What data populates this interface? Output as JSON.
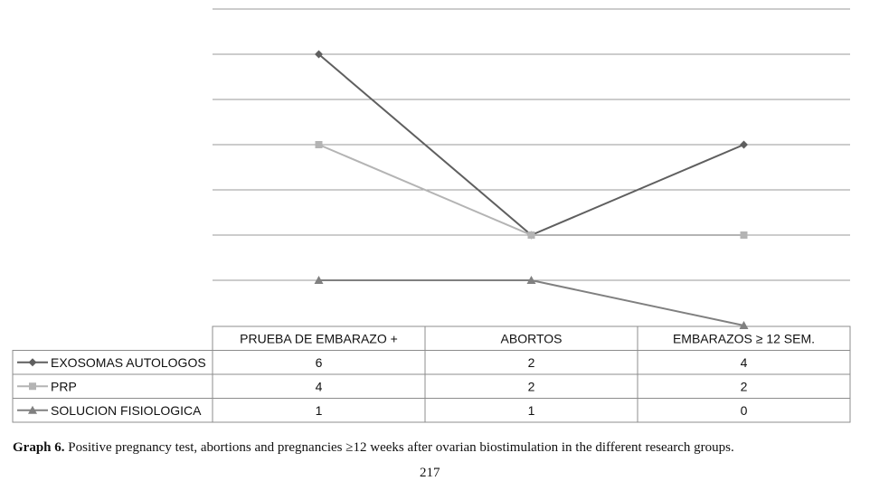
{
  "chart_data": {
    "type": "line",
    "categories": [
      "PRUEBA DE EMBARAZO +",
      "ABORTOS",
      "EMBARAZOS ≥ 12 SEM."
    ],
    "ylim": [
      0,
      7
    ],
    "grid": true,
    "series": [
      {
        "name": "EXOSOMAS AUTOLOGOS",
        "values": [
          6,
          2,
          4
        ],
        "color": "#5f5f5f",
        "marker": "diamond"
      },
      {
        "name": "PRP",
        "values": [
          4,
          2,
          2
        ],
        "color": "#b4b4b4",
        "marker": "square"
      },
      {
        "name": "SOLUCION FISIOLOGICA",
        "values": [
          1,
          1,
          0
        ],
        "color": "#808080",
        "marker": "triangle"
      }
    ]
  },
  "caption": {
    "label": "Graph 6.",
    "text": " Positive pregnancy test, abortions and pregnancies ≥12 weeks after ovarian biostimulation in the different research groups."
  },
  "page_number": "217"
}
